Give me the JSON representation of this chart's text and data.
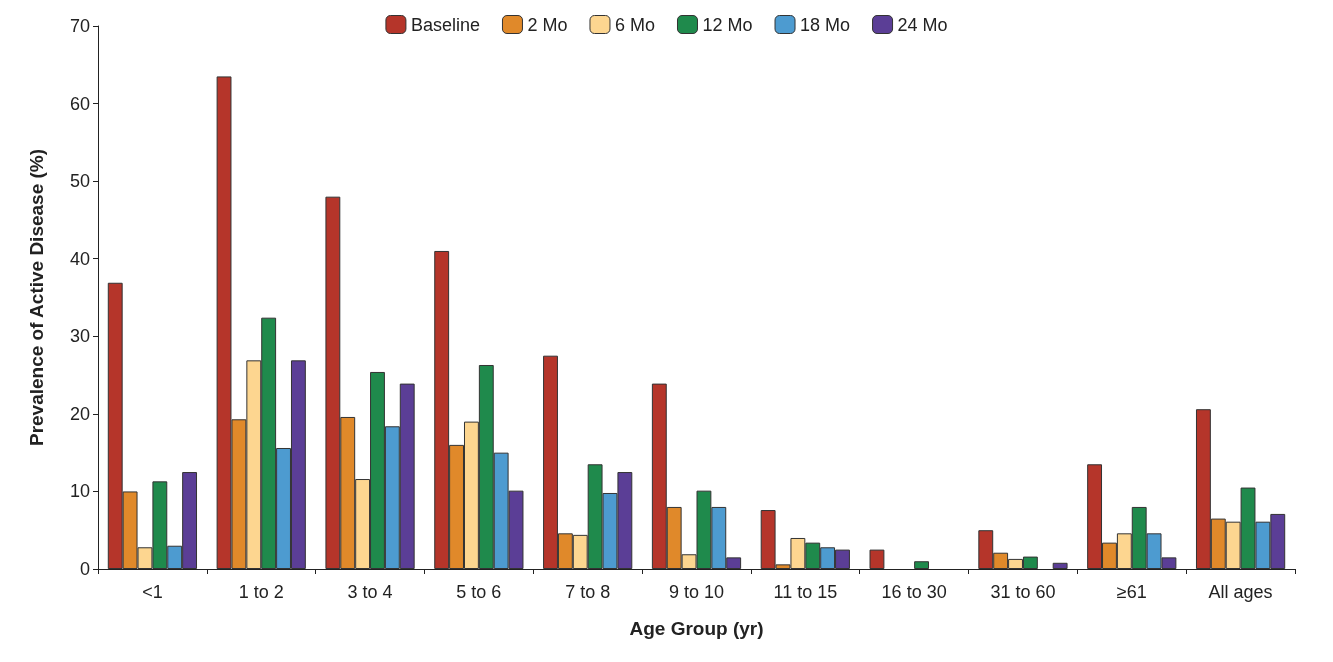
{
  "chart_data": {
    "type": "bar",
    "xlabel": "Age Group (yr)",
    "ylabel": "Prevalence of Active Disease (%)",
    "categories": [
      "<1",
      "1 to 2",
      "3 to 4",
      "5 to 6",
      "7 to 8",
      "9 to 10",
      "11 to 15",
      "16 to 30",
      "31 to 60",
      "≥61",
      "All ages"
    ],
    "series": [
      {
        "name": "Baseline",
        "color": "#b5352a",
        "values": [
          36.9,
          63.5,
          48,
          41,
          27.5,
          23.9,
          7.6,
          2.5,
          5,
          13.5,
          20.6
        ]
      },
      {
        "name": "2 Mo",
        "color": "#e0892a",
        "values": [
          10,
          19.3,
          19.6,
          16,
          4.6,
          8,
          0.6,
          null,
          2.1,
          3.4,
          6.5
        ]
      },
      {
        "name": "6 Mo",
        "color": "#fdd690",
        "values": [
          2.8,
          26.9,
          11.6,
          19,
          4.4,
          1.9,
          4,
          null,
          1.3,
          4.6,
          6.1
        ]
      },
      {
        "name": "12 Mo",
        "color": "#1f8a4c",
        "values": [
          11.3,
          32.4,
          25.4,
          26.3,
          13.5,
          10.1,
          3.4,
          1,
          1.6,
          8,
          10.5
        ]
      },
      {
        "name": "18 Mo",
        "color": "#4d9bd0",
        "values": [
          3,
          15.6,
          18.4,
          15,
          9.8,
          8,
          2.8,
          null,
          null,
          4.6,
          6.1
        ]
      },
      {
        "name": "24 Mo",
        "color": "#5b3e96",
        "values": [
          12.5,
          26.9,
          23.9,
          10.1,
          12.5,
          1.5,
          2.5,
          null,
          0.8,
          1.5,
          7.1
        ]
      }
    ],
    "ylim": [
      0,
      70
    ],
    "yticks": [
      0,
      10,
      20,
      30,
      40,
      50,
      60,
      70
    ],
    "grid": false,
    "legend": "top"
  }
}
